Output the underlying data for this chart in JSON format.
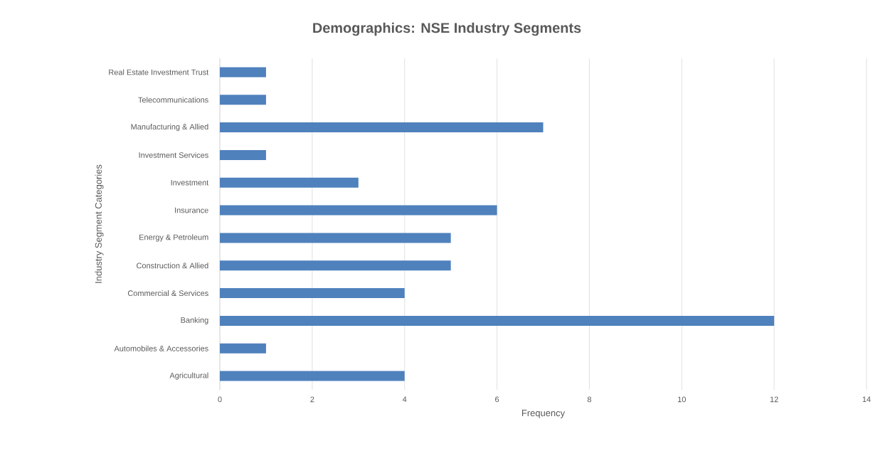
{
  "chart_data": {
    "type": "bar",
    "orientation": "horizontal",
    "title": "Demographics: NSE Industry Segments",
    "xlabel": "Frequency",
    "ylabel": "Industry Segment Categories",
    "categories": [
      "Real Estate Investment Trust",
      "Telecommunications",
      "Manufacturing & Allied",
      "Investment Services",
      "Investment",
      "Insurance",
      "Energy & Petroleum",
      "Construction & Allied",
      "Commercial & Services",
      "Banking",
      "Automobiles & Accessories",
      "Agricultural"
    ],
    "values": [
      1,
      1,
      7,
      1,
      3,
      6,
      5,
      5,
      4,
      12,
      1,
      4
    ],
    "color": "#4f81bd",
    "xlim": [
      0,
      14
    ],
    "xticks": [
      0,
      2,
      4,
      6,
      8,
      10,
      12,
      14
    ],
    "grid": "x"
  }
}
